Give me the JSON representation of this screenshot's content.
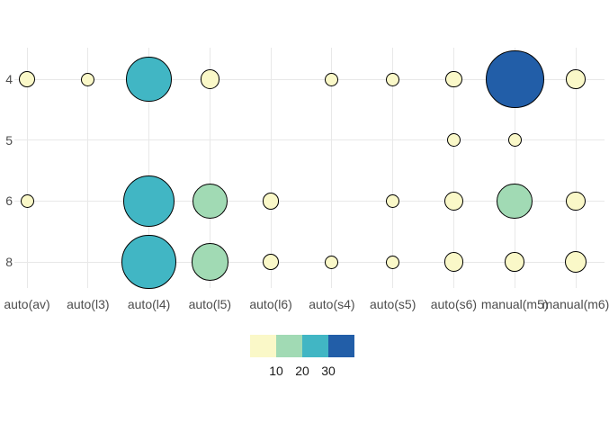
{
  "chart_data": {
    "type": "scatter",
    "subtype": "count-bubble",
    "title": "",
    "xlabel": "",
    "ylabel": "",
    "x_categories": [
      "auto(av)",
      "auto(l3)",
      "auto(l4)",
      "auto(l5)",
      "auto(l6)",
      "auto(s4)",
      "auto(s5)",
      "auto(s6)",
      "manual(m5)",
      "manual(m6)"
    ],
    "y_categories": [
      "4",
      "5",
      "6",
      "8"
    ],
    "grid": "on",
    "legend_position": "bottom",
    "legend": {
      "tick_labels": [
        "10",
        "20",
        "30"
      ],
      "bin_breaks": [
        10,
        20,
        30
      ],
      "colors": [
        "#faf8c8",
        "#a1dab4",
        "#41b6c4",
        "#225ea8"
      ]
    },
    "colors": {
      "gridline": "#e8e8e8",
      "axis_text": "#4d4d4d",
      "legend_text": "#1a1a1a",
      "bubble_stroke": "#000000"
    },
    "points": [
      {
        "x": "auto(av)",
        "y": "4",
        "n": 3
      },
      {
        "x": "auto(l3)",
        "y": "4",
        "n": 2
      },
      {
        "x": "auto(l4)",
        "y": "4",
        "n": 21
      },
      {
        "x": "auto(l5)",
        "y": "4",
        "n": 4
      },
      {
        "x": "auto(s4)",
        "y": "4",
        "n": 2
      },
      {
        "x": "auto(s5)",
        "y": "4",
        "n": 2
      },
      {
        "x": "auto(s6)",
        "y": "4",
        "n": 3
      },
      {
        "x": "manual(m5)",
        "y": "4",
        "n": 34
      },
      {
        "x": "manual(m6)",
        "y": "4",
        "n": 4
      },
      {
        "x": "auto(s6)",
        "y": "5",
        "n": 2
      },
      {
        "x": "manual(m5)",
        "y": "5",
        "n": 2
      },
      {
        "x": "auto(av)",
        "y": "6",
        "n": 2
      },
      {
        "x": "auto(l4)",
        "y": "6",
        "n": 27
      },
      {
        "x": "auto(l5)",
        "y": "6",
        "n": 13
      },
      {
        "x": "auto(l6)",
        "y": "6",
        "n": 3
      },
      {
        "x": "auto(s5)",
        "y": "6",
        "n": 2
      },
      {
        "x": "auto(s6)",
        "y": "6",
        "n": 4
      },
      {
        "x": "manual(m5)",
        "y": "6",
        "n": 13
      },
      {
        "x": "manual(m6)",
        "y": "6",
        "n": 4
      },
      {
        "x": "auto(l4)",
        "y": "8",
        "n": 30
      },
      {
        "x": "auto(l5)",
        "y": "8",
        "n": 14
      },
      {
        "x": "auto(l6)",
        "y": "8",
        "n": 3
      },
      {
        "x": "auto(s4)",
        "y": "8",
        "n": 2
      },
      {
        "x": "auto(s5)",
        "y": "8",
        "n": 2
      },
      {
        "x": "auto(s6)",
        "y": "8",
        "n": 4
      },
      {
        "x": "manual(m5)",
        "y": "8",
        "n": 4
      },
      {
        "x": "manual(m6)",
        "y": "8",
        "n": 5
      }
    ]
  }
}
